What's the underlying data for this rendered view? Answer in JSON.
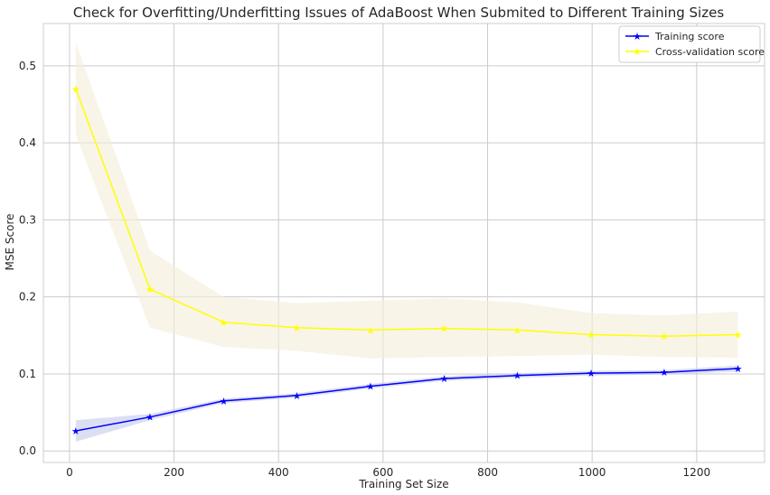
{
  "chart_data": {
    "type": "line",
    "title": "Check for Overfitting/Underfitting Issues of AdaBoost When Submited to Different Training Sizes",
    "xlabel": "Training Set Size",
    "ylabel": "MSE Score",
    "xlim": [
      -50,
      1330
    ],
    "ylim": [
      -0.015,
      0.555
    ],
    "xticks": [
      0,
      200,
      400,
      600,
      800,
      1000,
      1200
    ],
    "yticks": [
      0.0,
      0.1,
      0.2,
      0.3,
      0.4,
      0.5
    ],
    "xtick_labels": [
      "0",
      "200",
      "400",
      "600",
      "800",
      "1000",
      "1200"
    ],
    "ytick_labels": [
      "0.0",
      "0.1",
      "0.2",
      "0.3",
      "0.4",
      "0.5"
    ],
    "grid": true,
    "legend_position": "top-right",
    "x": [
      12,
      154,
      295,
      435,
      576,
      717,
      857,
      998,
      1138,
      1279
    ],
    "series": [
      {
        "name": "Training score",
        "color": "#0000ff",
        "marker": "star",
        "values": [
          0.026,
          0.044,
          0.065,
          0.072,
          0.084,
          0.094,
          0.098,
          0.101,
          0.102,
          0.107
        ],
        "band_low": [
          0.012,
          0.04,
          0.062,
          0.069,
          0.081,
          0.091,
          0.095,
          0.098,
          0.099,
          0.103
        ],
        "band_high": [
          0.04,
          0.048,
          0.068,
          0.075,
          0.087,
          0.097,
          0.101,
          0.104,
          0.105,
          0.111
        ],
        "band_color": "#c5cae9"
      },
      {
        "name": "Cross-validation score",
        "color": "#ffff00",
        "marker": "star",
        "values": [
          0.47,
          0.21,
          0.167,
          0.16,
          0.157,
          0.159,
          0.157,
          0.151,
          0.149,
          0.151
        ],
        "band_low": [
          0.41,
          0.16,
          0.135,
          0.13,
          0.12,
          0.122,
          0.123,
          0.125,
          0.122,
          0.121
        ],
        "band_high": [
          0.53,
          0.26,
          0.2,
          0.192,
          0.195,
          0.198,
          0.193,
          0.179,
          0.176,
          0.181
        ],
        "band_color": "#f3ecd9"
      }
    ]
  }
}
